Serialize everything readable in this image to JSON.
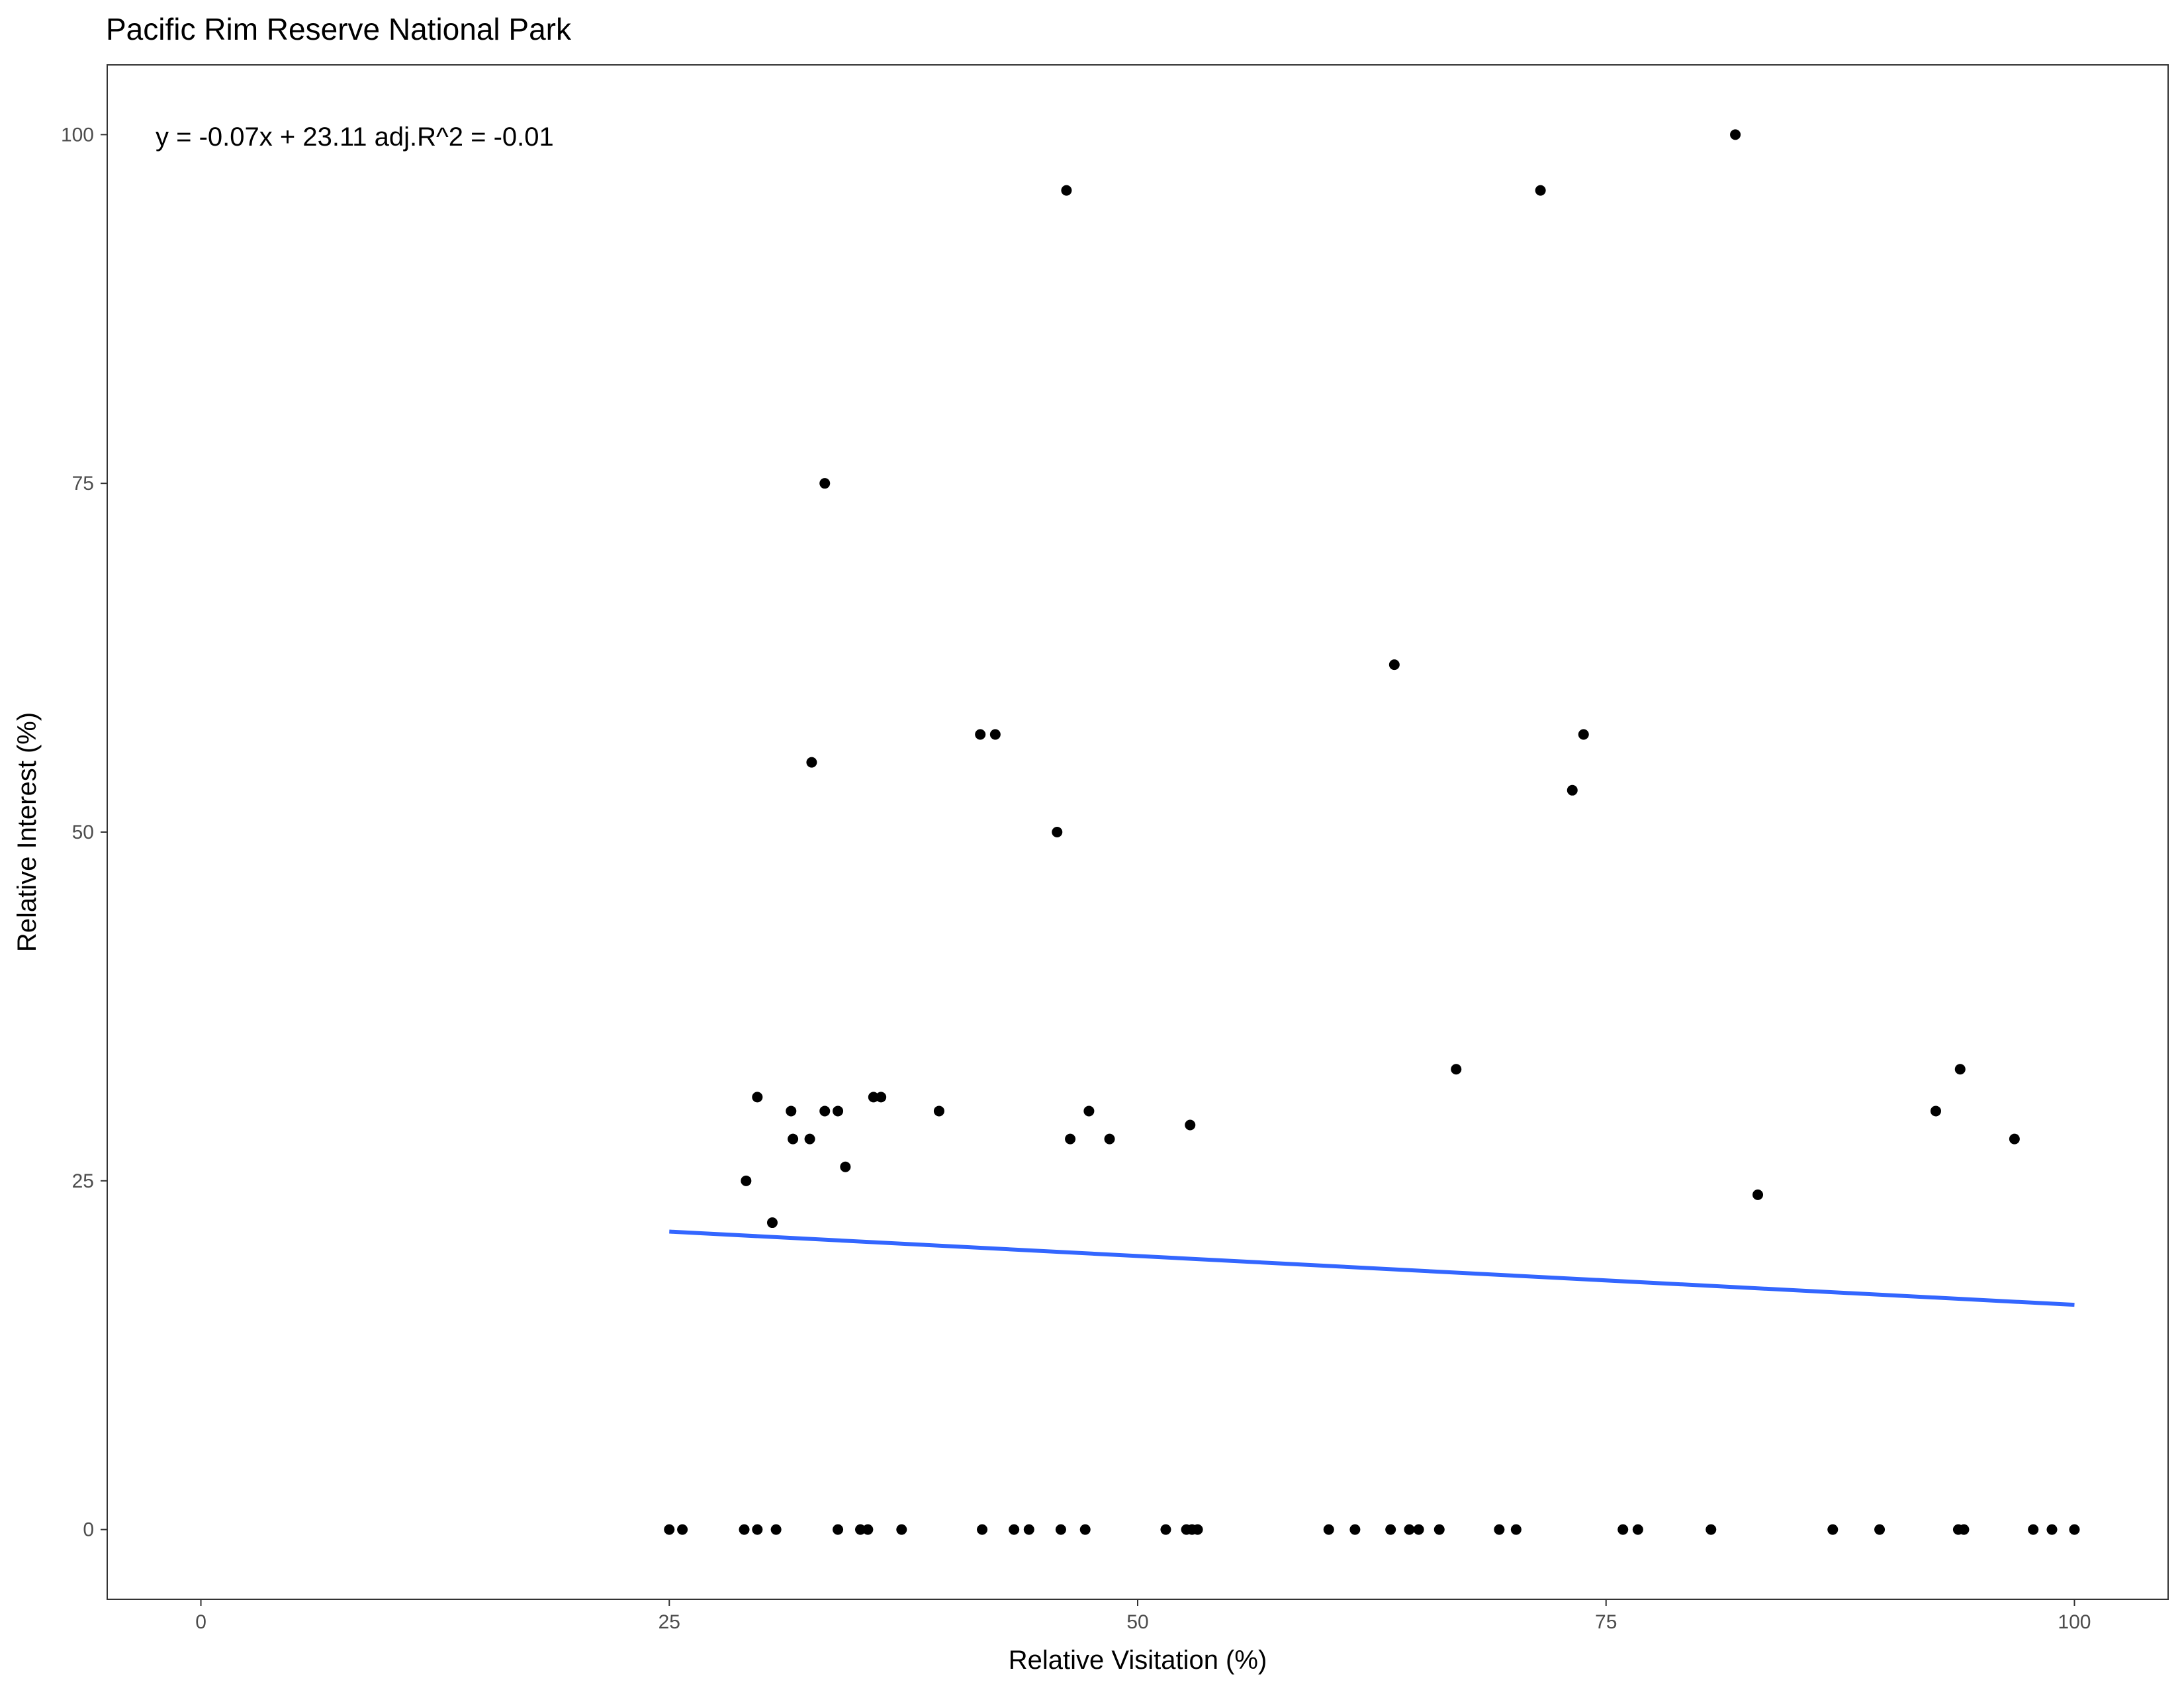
{
  "chart_data": {
    "type": "scatter",
    "title": "Pacific Rim Reserve National Park",
    "xlabel": "Relative Visitation (%)",
    "ylabel": "Relative Interest (%)",
    "xlim": [
      -5,
      105
    ],
    "ylim": [
      -5,
      105
    ],
    "xticks": [
      0,
      25,
      50,
      75,
      100
    ],
    "yticks": [
      0,
      25,
      50,
      75,
      100
    ],
    "grid": false,
    "annotation": "y = -0.07x + 23.11 adj.R^2 = -0.01",
    "point_color": "#000000",
    "fit_line": {
      "color": "#3366FF",
      "x": [
        25,
        100
      ],
      "y": [
        21.36,
        16.11
      ]
    },
    "points": [
      {
        "x": 25.0,
        "y": 0
      },
      {
        "x": 25.7,
        "y": 0
      },
      {
        "x": 29.0,
        "y": 0
      },
      {
        "x": 29.7,
        "y": 0
      },
      {
        "x": 30.7,
        "y": 0
      },
      {
        "x": 34.0,
        "y": 0
      },
      {
        "x": 35.2,
        "y": 0
      },
      {
        "x": 35.6,
        "y": 0
      },
      {
        "x": 37.4,
        "y": 0
      },
      {
        "x": 41.7,
        "y": 0
      },
      {
        "x": 43.4,
        "y": 0
      },
      {
        "x": 44.2,
        "y": 0
      },
      {
        "x": 45.9,
        "y": 0
      },
      {
        "x": 47.2,
        "y": 0
      },
      {
        "x": 51.5,
        "y": 0
      },
      {
        "x": 52.6,
        "y": 0
      },
      {
        "x": 52.9,
        "y": 0
      },
      {
        "x": 53.2,
        "y": 0
      },
      {
        "x": 60.2,
        "y": 0
      },
      {
        "x": 61.6,
        "y": 0
      },
      {
        "x": 63.5,
        "y": 0
      },
      {
        "x": 64.5,
        "y": 0
      },
      {
        "x": 65.0,
        "y": 0
      },
      {
        "x": 66.1,
        "y": 0
      },
      {
        "x": 69.3,
        "y": 0
      },
      {
        "x": 70.2,
        "y": 0
      },
      {
        "x": 75.9,
        "y": 0
      },
      {
        "x": 76.7,
        "y": 0
      },
      {
        "x": 80.6,
        "y": 0
      },
      {
        "x": 87.1,
        "y": 0
      },
      {
        "x": 89.6,
        "y": 0
      },
      {
        "x": 93.8,
        "y": 0
      },
      {
        "x": 94.1,
        "y": 0
      },
      {
        "x": 97.8,
        "y": 0
      },
      {
        "x": 98.8,
        "y": 0
      },
      {
        "x": 100.0,
        "y": 0
      },
      {
        "x": 29.1,
        "y": 25
      },
      {
        "x": 29.7,
        "y": 31
      },
      {
        "x": 30.5,
        "y": 22
      },
      {
        "x": 31.5,
        "y": 30
      },
      {
        "x": 31.6,
        "y": 28
      },
      {
        "x": 32.5,
        "y": 28
      },
      {
        "x": 32.6,
        "y": 55
      },
      {
        "x": 33.3,
        "y": 30
      },
      {
        "x": 33.3,
        "y": 75
      },
      {
        "x": 34.0,
        "y": 30
      },
      {
        "x": 34.4,
        "y": 26
      },
      {
        "x": 35.9,
        "y": 31
      },
      {
        "x": 36.3,
        "y": 31
      },
      {
        "x": 39.4,
        "y": 30
      },
      {
        "x": 41.6,
        "y": 57
      },
      {
        "x": 42.4,
        "y": 57
      },
      {
        "x": 45.7,
        "y": 50
      },
      {
        "x": 46.2,
        "y": 96
      },
      {
        "x": 46.4,
        "y": 28
      },
      {
        "x": 47.4,
        "y": 30
      },
      {
        "x": 48.5,
        "y": 28
      },
      {
        "x": 52.8,
        "y": 29
      },
      {
        "x": 63.7,
        "y": 62
      },
      {
        "x": 67.0,
        "y": 33
      },
      {
        "x": 71.5,
        "y": 96
      },
      {
        "x": 73.2,
        "y": 53
      },
      {
        "x": 73.8,
        "y": 57
      },
      {
        "x": 81.9,
        "y": 100
      },
      {
        "x": 83.1,
        "y": 24
      },
      {
        "x": 92.6,
        "y": 30
      },
      {
        "x": 93.9,
        "y": 33
      },
      {
        "x": 96.8,
        "y": 28
      }
    ]
  }
}
